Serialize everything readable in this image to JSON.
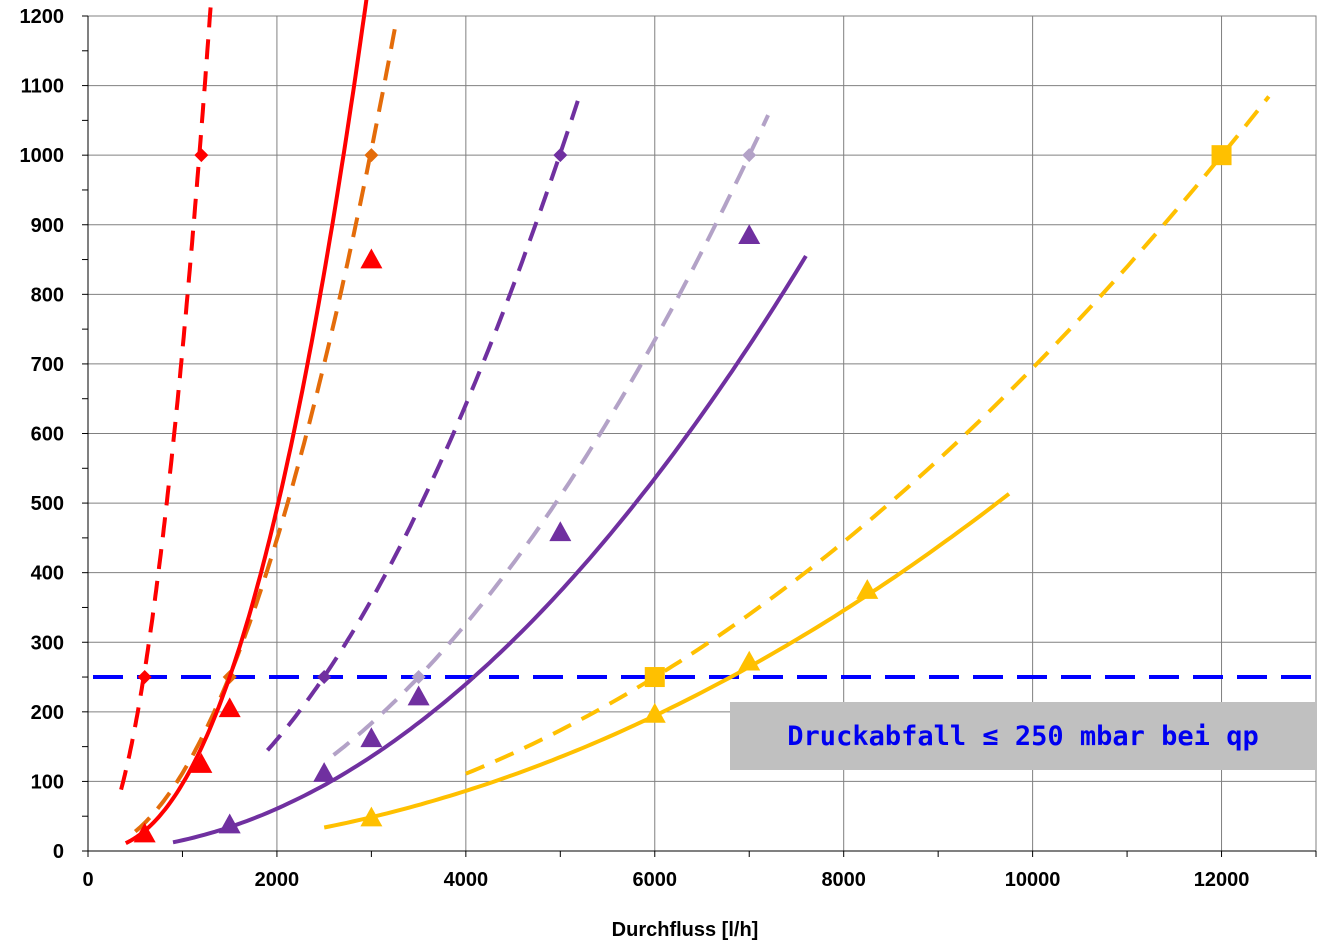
{
  "chart_data": {
    "type": "line",
    "title": "",
    "xlabel": "Durchfluss [l/h]",
    "ylabel": "",
    "xlim": [
      0,
      13000
    ],
    "ylim": [
      0,
      1200
    ],
    "xticks": [
      0,
      2000,
      4000,
      6000,
      8000,
      10000,
      12000
    ],
    "yticks": [
      0,
      100,
      200,
      300,
      400,
      500,
      600,
      700,
      800,
      900,
      1000,
      1100,
      1200
    ],
    "grid": true,
    "legend": "none",
    "annotation": "Druckabfall ≤ 250 mbar bei qp",
    "threshold": {
      "y": 250,
      "color": "#0000ff"
    },
    "series": [
      {
        "color": "#ff0000",
        "dashed": true,
        "marker": "diamond",
        "k": 0.00072,
        "n": 2,
        "range": [
          350,
          1320
        ],
        "points": [
          [
            600,
            250
          ],
          [
            1200,
            1000
          ]
        ]
      },
      {
        "color": "#e46c0a",
        "dashed": true,
        "marker": "diamond",
        "k": 0.000112,
        "n": 2,
        "range": [
          500,
          3250
        ],
        "points": [
          [
            1500,
            250
          ],
          [
            3000,
            1000
          ]
        ]
      },
      {
        "color": "#ff0000",
        "dashed": false,
        "marker": "triangle",
        "k": 8.6e-06,
        "n": 2.35,
        "range": [
          400,
          3350
        ],
        "points": [
          [
            600,
            25
          ],
          [
            1200,
            125
          ],
          [
            1500,
            205
          ],
          [
            3000,
            850
          ]
        ]
      },
      {
        "color": "#7030a0",
        "dashed": true,
        "marker": "diamond",
        "k": 4.01e-05,
        "n": 2,
        "range": [
          1900,
          5200
        ],
        "points": [
          [
            2500,
            250
          ],
          [
            5000,
            1000
          ]
        ]
      },
      {
        "color": "#b3a2c7",
        "dashed": true,
        "marker": "diamond",
        "k": 2.04e-05,
        "n": 2,
        "range": [
          2600,
          7200
        ],
        "points": [
          [
            3500,
            250
          ],
          [
            7000,
            1000
          ]
        ]
      },
      {
        "color": "#7030a0",
        "dashed": false,
        "marker": "triangle",
        "k": 1.77e-05,
        "n": 1.98,
        "range": [
          900,
          7600
        ],
        "points": [
          [
            1500,
            38
          ],
          [
            2500,
            112
          ],
          [
            3000,
            162
          ],
          [
            3500,
            222
          ],
          [
            5000,
            458
          ],
          [
            7000,
            885
          ]
        ]
      },
      {
        "color": "#ffc000",
        "dashed": true,
        "marker": "square",
        "k": 6.94e-06,
        "n": 2,
        "range": [
          4000,
          12500
        ],
        "points": [
          [
            6000,
            250
          ],
          [
            12000,
            1000
          ]
        ]
      },
      {
        "color": "#ffc000",
        "dashed": false,
        "marker": "triangle",
        "k": 5.4e-06,
        "n": 2,
        "range": [
          2500,
          9750
        ],
        "points": [
          [
            3000,
            48
          ],
          [
            6000,
            197
          ],
          [
            7000,
            272
          ],
          [
            8250,
            375
          ]
        ]
      }
    ]
  }
}
